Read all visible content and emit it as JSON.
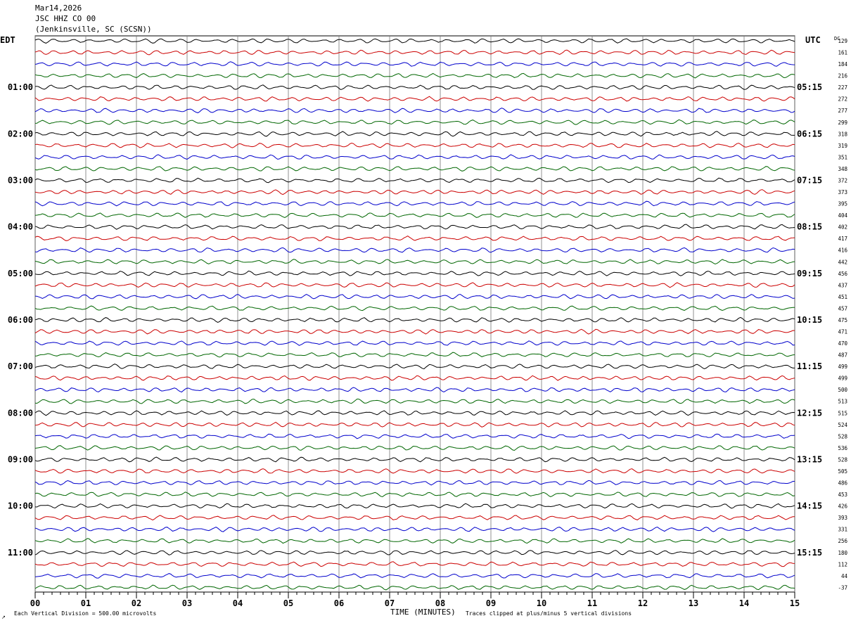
{
  "header": {
    "date": "Mar14,2026",
    "station": "JSC HHZ CO 00",
    "location": "(Jenkinsville, SC (SCSN))"
  },
  "labels": {
    "left_tz": "EDT",
    "right_tz": "UTC",
    "dc_header": "DC"
  },
  "footer": {
    "vertical_division": "Each Vertical Division =  500.00 microvolts",
    "xlabel": "TIME (MINUTES)",
    "clip_note": "Traces clipped at plus/minus 5 vertical divisions",
    "corner_mark": "↗"
  },
  "colors": [
    "#000000",
    "#cc0000",
    "#0000cc",
    "#006600"
  ],
  "chart_data": {
    "type": "line",
    "title": "JSC HHZ CO 00",
    "xlabel": "TIME (MINUTES)",
    "xlim": [
      0,
      15
    ],
    "x_ticks": [
      "00",
      "01",
      "02",
      "03",
      "04",
      "05",
      "06",
      "07",
      "08",
      "09",
      "10",
      "11",
      "12",
      "13",
      "14",
      "15"
    ],
    "left_time_labels": [
      "01:00",
      "02:00",
      "03:00",
      "04:00",
      "05:00",
      "06:00",
      "07:00",
      "08:00",
      "09:00",
      "10:00",
      "11:00"
    ],
    "right_time_labels": [
      "05:15",
      "06:15",
      "07:15",
      "08:15",
      "09:15",
      "10:15",
      "11:15",
      "12:15",
      "13:15",
      "14:15",
      "15:15"
    ],
    "dc_offsets": [
      "129",
      "161",
      "184",
      "216",
      "227",
      "272",
      "277",
      "299",
      "318",
      "319",
      "351",
      "348",
      "372",
      "373",
      "395",
      "404",
      "402",
      "417",
      "416",
      "442",
      "456",
      "437",
      "451",
      "457",
      "475",
      "471",
      "470",
      "487",
      "499",
      "499",
      "500",
      "513",
      "515",
      "524",
      "528",
      "536",
      "528",
      "505",
      "486",
      "453",
      "426",
      "393",
      "331",
      "256",
      "180",
      "112",
      "44",
      "-37"
    ],
    "trace_minutes": 15,
    "traces_per_hour": 4,
    "trace_count": 48,
    "clip_divisions": 5,
    "microvolts_per_division": 500.0
  }
}
